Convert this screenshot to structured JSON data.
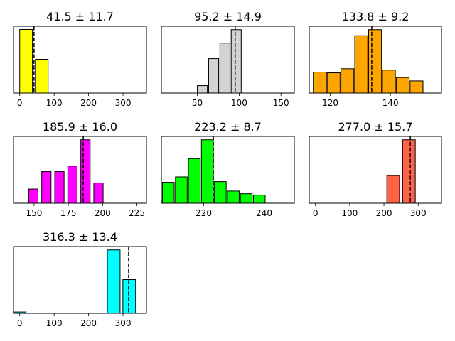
{
  "chart_data": [
    {
      "type": "bar",
      "title": "41.5 ± 11.7",
      "color": "#ffff00",
      "xlim": [
        -18,
        368
      ],
      "xticks": [
        0,
        100,
        200,
        300
      ],
      "bar_width": 37,
      "bars": [
        {
          "x": 18.5,
          "height": 100
        },
        {
          "x": 64.0,
          "height": 53
        }
      ],
      "mean": 41.5,
      "ylim": [
        0,
        105
      ]
    },
    {
      "type": "bar",
      "title": "95.2 ± 14.9",
      "color": "#d3d3d3",
      "xlim": [
        7,
        166
      ],
      "xticks": [
        50,
        100,
        150
      ],
      "bar_width": 12,
      "bars": [
        {
          "x": 43.0,
          "height": 0
        },
        {
          "x": 56.0,
          "height": 11
        },
        {
          "x": 69.5,
          "height": 51
        },
        {
          "x": 83.0,
          "height": 74
        },
        {
          "x": 96.5,
          "height": 94
        },
        {
          "x": 110.0,
          "height": 0
        }
      ],
      "mean": 95.2,
      "ylim": [
        0,
        99
      ]
    },
    {
      "type": "bar",
      "title": "133.8 ± 9.2",
      "color": "#ffa500",
      "xlim": [
        113,
        157
      ],
      "xticks": [
        120,
        140
      ],
      "bar_width": 4.3,
      "bars": [
        {
          "x": 116.5,
          "height": 31
        },
        {
          "x": 121.1,
          "height": 30
        },
        {
          "x": 125.7,
          "height": 36
        },
        {
          "x": 130.3,
          "height": 85
        },
        {
          "x": 134.9,
          "height": 94
        },
        {
          "x": 139.5,
          "height": 34
        },
        {
          "x": 144.1,
          "height": 23
        },
        {
          "x": 148.7,
          "height": 18
        }
      ],
      "mean": 133.8,
      "ylim": [
        0,
        99
      ]
    },
    {
      "type": "bar",
      "title": "185.9 ± 16.0",
      "color": "#ff00ff",
      "xlim": [
        135,
        232
      ],
      "xticks": [
        150,
        175,
        200,
        225
      ],
      "bar_width": 6.8,
      "bars": [
        {
          "x": 140.0,
          "height": 0
        },
        {
          "x": 149.5,
          "height": 21
        },
        {
          "x": 159.0,
          "height": 47
        },
        {
          "x": 168.5,
          "height": 47
        },
        {
          "x": 178.0,
          "height": 55
        },
        {
          "x": 187.5,
          "height": 94
        },
        {
          "x": 197.0,
          "height": 30
        },
        {
          "x": 206.5,
          "height": 0
        }
      ],
      "mean": 185.9,
      "ylim": [
        0,
        99
      ]
    },
    {
      "type": "bar",
      "title": "223.2 ± 8.7",
      "color": "#00ff00",
      "xlim": [
        206,
        250
      ],
      "xticks": [
        220,
        240
      ],
      "bar_width": 3.9,
      "bars": [
        {
          "x": 208.3,
          "height": 31
        },
        {
          "x": 212.6,
          "height": 39
        },
        {
          "x": 216.9,
          "height": 66
        },
        {
          "x": 221.2,
          "height": 94
        },
        {
          "x": 225.5,
          "height": 32
        },
        {
          "x": 229.8,
          "height": 18
        },
        {
          "x": 234.1,
          "height": 14
        },
        {
          "x": 238.4,
          "height": 12
        }
      ],
      "mean": 223.2,
      "ylim": [
        0,
        99
      ]
    },
    {
      "type": "bar",
      "title": "277.0 ± 15.7",
      "color": "#ff6347",
      "xlim": [
        -18,
        368
      ],
      "xticks": [
        0,
        100,
        200,
        300
      ],
      "bar_width": 37,
      "bars": [
        {
          "x": 0,
          "height": 0
        },
        {
          "x": 45,
          "height": 0
        },
        {
          "x": 90,
          "height": 0
        },
        {
          "x": 135,
          "height": 0
        },
        {
          "x": 180,
          "height": 0
        },
        {
          "x": 227,
          "height": 41
        },
        {
          "x": 273,
          "height": 94
        },
        {
          "x": 318,
          "height": 0
        }
      ],
      "mean": 277.0,
      "ylim": [
        0,
        99
      ]
    },
    {
      "type": "bar",
      "title": "316.3 ± 13.4",
      "color": "#00ffff",
      "xlim": [
        -18,
        368
      ],
      "xticks": [
        0,
        100,
        200,
        300
      ],
      "bar_width": 37,
      "bars": [
        {
          "x": 0,
          "height": 2
        },
        {
          "x": 45,
          "height": 0
        },
        {
          "x": 90,
          "height": 0
        },
        {
          "x": 135,
          "height": 0
        },
        {
          "x": 180,
          "height": 0
        },
        {
          "x": 227,
          "height": 0
        },
        {
          "x": 273,
          "height": 94
        },
        {
          "x": 318,
          "height": 50
        }
      ],
      "mean": 316.3,
      "ylim": [
        0,
        99
      ]
    }
  ]
}
